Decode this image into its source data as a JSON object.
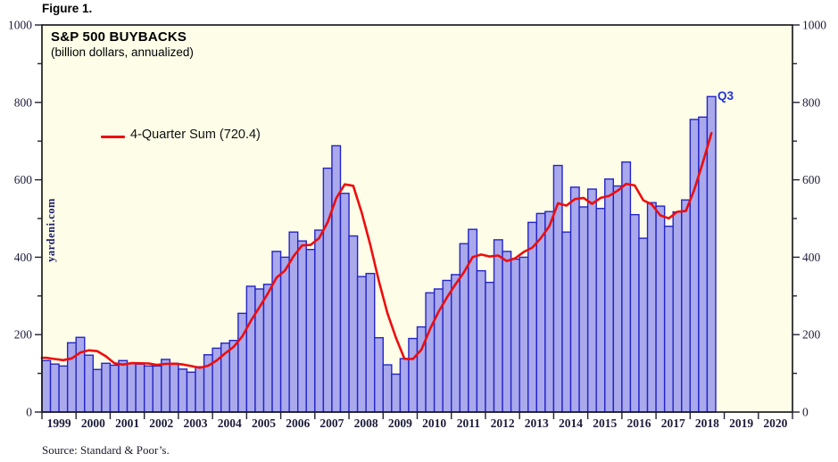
{
  "figure_label": "Figure 1.",
  "plot": {
    "title": "S&P 500 BUYBACKS",
    "subtitle": "(billion dollars, annualized)"
  },
  "legend": {
    "label": "4-Quarter Sum (720.4)"
  },
  "watermark": {
    "text": "yardeni.com"
  },
  "annotations": {
    "latest_quarter": "Q3"
  },
  "footer": {
    "source": "Source: Standard & Poor’s."
  },
  "colors": {
    "plot_bg": "#fdfde8",
    "bar_fill": "#a9a9ec",
    "bar_border": "#2424c8",
    "line": "#ee0d0d",
    "frame": "#111111",
    "tick": "#222233",
    "axis_text": "#1c1c3a",
    "q3_label": "#2233dd",
    "watermark_text": "#1e1e6e"
  },
  "chart_data": {
    "type": "bar",
    "title": "S&P 500 BUYBACKS",
    "subtitle": "(billion dollars, annualized)",
    "ylabel": "billion dollars, annualized",
    "ylim": [
      0,
      1000
    ],
    "y_major_ticks": [
      0,
      200,
      400,
      600,
      800,
      1000
    ],
    "y_minor_ticks": [
      100,
      300,
      500,
      700,
      900
    ],
    "x_tick_years": [
      "1999",
      "2000",
      "2001",
      "2002",
      "2003",
      "2004",
      "2005",
      "2006",
      "2007",
      "2008",
      "2009",
      "2010",
      "2011",
      "2012",
      "2013",
      "2014",
      "2015",
      "2016",
      "2017",
      "2018",
      "2019",
      "2020"
    ],
    "bars_per_year": 4,
    "x_start": "1999 Q1",
    "x_end": "2018 Q3",
    "legend_position": "upper-left-inside",
    "grid": false,
    "series": [
      {
        "name": "S&P 500 buybacks (quarterly, annualized)",
        "type": "bar",
        "values": [
          133,
          124,
          119,
          179,
          193,
          147,
          110,
          126,
          121,
          133,
          126,
          124,
          119,
          119,
          136,
          126,
          111,
          103,
          117,
          148,
          165,
          178,
          185,
          255,
          325,
          318,
          330,
          415,
          400,
          465,
          442,
          420,
          470,
          630,
          688,
          565,
          455,
          350,
          358,
          192,
          122,
          98,
          138,
          190,
          220,
          308,
          318,
          340,
          355,
          435,
          472,
          365,
          335,
          445,
          415,
          395,
          400,
          490,
          513,
          518,
          637,
          465,
          581,
          530,
          576,
          526,
          602,
          584,
          646,
          510,
          449,
          541,
          532,
          480,
          517,
          548,
          756,
          762,
          815
        ]
      },
      {
        "name": "4-Quarter Sum",
        "type": "line",
        "latest_value": 720.4,
        "values": [
          140,
          137,
          134,
          138.8,
          153.8,
          159.5,
          157.3,
          144,
          126,
          122.5,
          126.5,
          126,
          125.5,
          122,
          124.5,
          125,
          123,
          119,
          114.3,
          119.8,
          133.3,
          152,
          169,
          195.8,
          235.8,
          270.8,
          307,
          347,
          365.8,
          402.5,
          430.5,
          431.8,
          449.3,
          490.5,
          552,
          588.3,
          584.5,
          514.5,
          432,
          338.8,
          255.5,
          192.5,
          137.5,
          137,
          161.5,
          214,
          259,
          296.5,
          330.3,
          362,
          400.5,
          406.8,
          401.8,
          404.3,
          390,
          397.5,
          413.8,
          425,
          449.5,
          480.3,
          539.5,
          533.3,
          550.3,
          553.3,
          538,
          553.3,
          558.5,
          572,
          589.5,
          585.5,
          547.3,
          536.5,
          508,
          500.5,
          517.5,
          519.3,
          575.3,
          645.8,
          720.4
        ]
      }
    ]
  }
}
